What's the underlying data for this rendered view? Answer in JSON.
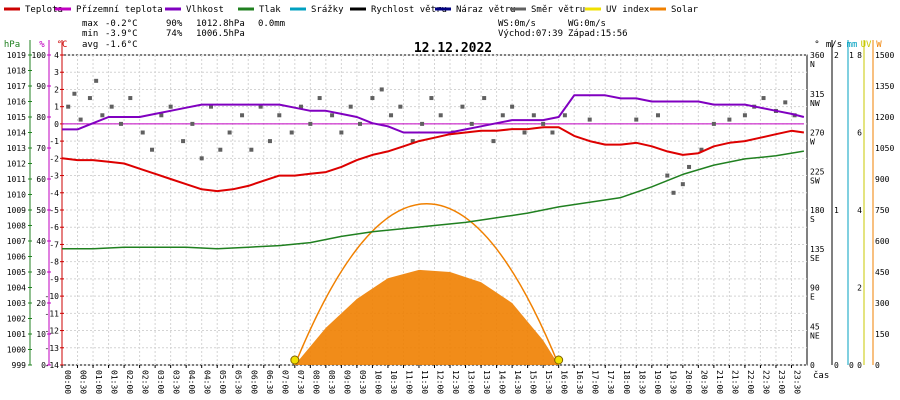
{
  "chart_data": {
    "type": "line",
    "title": "12.12.2022",
    "legend": [
      {
        "label": "Teplota",
        "color": "#cc0000"
      },
      {
        "label": "Přízemní teplota",
        "color": "#c000c0"
      },
      {
        "label": "Vlhkost",
        "color": "#8000c0"
      },
      {
        "label": "Tlak",
        "color": "#208020"
      },
      {
        "label": "Srážky",
        "color": "#00a0c0"
      },
      {
        "label": "Rychlost větru",
        "color": "#000000"
      },
      {
        "label": "Náraz větru",
        "color": "#000080"
      },
      {
        "label": "Směr větru",
        "color": "#606060"
      },
      {
        "label": "UV index",
        "color": "#f0e000"
      },
      {
        "label": "Solar",
        "color": "#f08000"
      }
    ],
    "stats": {
      "max": {
        "label": "max",
        "temp": "-0.2°C",
        "hum": "90%",
        "press": "1012.8hPa",
        "rain": "0.0mm"
      },
      "min": {
        "label": "min",
        "temp": "-3.9°C",
        "hum": "74%",
        "press": "1006.5hPa"
      },
      "avg": {
        "label": "avg",
        "temp": "-1.6°C"
      }
    },
    "wind": {
      "ws": "WS:0m/s",
      "wg": "WG:0m/s",
      "sunrise": "Východ:07:39",
      "sunset": "Západ:15:56"
    },
    "axes": {
      "hpa": {
        "unit": "hPa",
        "color": "#208020",
        "ticks": [
          "999",
          "1000",
          "1001",
          "1002",
          "1003",
          "1004",
          "1005",
          "1006",
          "1007",
          "1008",
          "1009",
          "1010",
          "1011",
          "1012",
          "1013",
          "1014",
          "1015",
          "1016",
          "1017",
          "1018",
          "1019"
        ]
      },
      "pct": {
        "unit": "%",
        "color": "#c000c0",
        "ticks": [
          "0",
          "10",
          "20",
          "30",
          "40",
          "50",
          "60",
          "70",
          "80",
          "90",
          "100"
        ]
      },
      "degc": {
        "unit": "°C",
        "color": "#cc0000",
        "ticks": [
          "-14",
          "-13",
          "-12",
          "-11",
          "-10",
          "-9",
          "-8",
          "-7",
          "-6",
          "-5",
          "-4",
          "-3",
          "-2",
          "-1",
          "0",
          "1",
          "2",
          "3",
          "4"
        ]
      },
      "dir": {
        "unit": "°",
        "color": "#000000",
        "ticks": [
          "0",
          "45\nNE",
          "90\nE",
          "135\nSE",
          "180\nS",
          "225\nSW",
          "270\nW",
          "315\nNW",
          "360\nN"
        ]
      },
      "ms": {
        "unit": "m/s",
        "color": "#000000",
        "ticks": [
          "0",
          "1",
          "2"
        ]
      },
      "mm": {
        "unit": "mm",
        "color": "#00a0c0",
        "ticks": [
          "0",
          "1"
        ]
      },
      "uv": {
        "unit": "UV",
        "color": "#c8c800",
        "ticks": [
          "0",
          "2",
          "4",
          "6",
          "8"
        ]
      },
      "w": {
        "unit": "W",
        "color": "#f08000",
        "ticks": [
          "0",
          "150",
          "300",
          "450",
          "600",
          "750",
          "900",
          "1050",
          "1200",
          "1350",
          "1500"
        ]
      }
    },
    "x_ticks": [
      "00:00",
      "00:30",
      "01:00",
      "01:30",
      "02:00",
      "02:30",
      "03:00",
      "03:30",
      "04:00",
      "04:30",
      "05:00",
      "05:30",
      "06:00",
      "06:30",
      "07:00",
      "07:30",
      "08:00",
      "08:30",
      "09:00",
      "09:30",
      "10:00",
      "10:30",
      "11:00",
      "11:30",
      "12:00",
      "12:30",
      "13:00",
      "13:30",
      "14:00",
      "14:30",
      "15:00",
      "15:30",
      "16:00",
      "16:30",
      "17:00",
      "17:30",
      "18:00",
      "18:30",
      "19:00",
      "19:30",
      "20:00",
      "20:30",
      "21:00",
      "21:30",
      "22:00",
      "22:30",
      "23:00",
      "23:30"
    ],
    "xlabel": "čas",
    "series": {
      "teplota": {
        "x": [
          0,
          0.5,
          1,
          1.5,
          2,
          2.5,
          3,
          3.5,
          4,
          4.5,
          5,
          5.5,
          6,
          6.5,
          7,
          7.5,
          8,
          8.5,
          9,
          9.5,
          10,
          10.5,
          11,
          11.5,
          12,
          12.5,
          13,
          13.5,
          14,
          14.5,
          15,
          15.5,
          16,
          16.5,
          17,
          17.5,
          18,
          18.5,
          19,
          19.5,
          20,
          20.5,
          21,
          21.5,
          22,
          22.5,
          23,
          23.5,
          23.9
        ],
        "y": [
          -2.0,
          -2.1,
          -2.1,
          -2.2,
          -2.3,
          -2.6,
          -2.9,
          -3.2,
          -3.5,
          -3.8,
          -3.9,
          -3.8,
          -3.6,
          -3.3,
          -3.0,
          -3.0,
          -2.9,
          -2.8,
          -2.5,
          -2.1,
          -1.8,
          -1.6,
          -1.3,
          -1.0,
          -0.8,
          -0.6,
          -0.5,
          -0.4,
          -0.4,
          -0.3,
          -0.3,
          -0.2,
          -0.2,
          -0.7,
          -1.0,
          -1.2,
          -1.2,
          -1.1,
          -1.3,
          -1.6,
          -1.8,
          -1.7,
          -1.3,
          -1.1,
          -1.0,
          -0.8,
          -0.6,
          -0.4,
          -0.5
        ]
      },
      "vlhkost": {
        "x": [
          0,
          0.5,
          1,
          1.5,
          2,
          2.5,
          3,
          3.5,
          4,
          4.5,
          5,
          5.5,
          6,
          6.5,
          7,
          7.5,
          8,
          8.5,
          9,
          9.5,
          10,
          10.5,
          11,
          11.5,
          12,
          12.5,
          13,
          13.5,
          14,
          14.5,
          15,
          15.5,
          16,
          16.5,
          17,
          17.5,
          18,
          18.5,
          19,
          19.5,
          20,
          20.5,
          21,
          21.5,
          22,
          22.5,
          23,
          23.5,
          23.9
        ],
        "y": [
          76,
          76,
          78,
          80,
          80,
          80,
          81,
          82,
          83,
          84,
          84,
          84,
          84,
          84,
          84,
          83,
          82,
          82,
          81,
          80,
          78,
          77,
          75,
          75,
          75,
          75,
          76,
          77,
          78,
          79,
          79,
          79,
          80,
          87,
          87,
          87,
          86,
          86,
          85,
          85,
          85,
          85,
          84,
          84,
          84,
          83,
          82,
          81,
          80
        ]
      },
      "tlak": {
        "x": [
          0,
          1,
          2,
          3,
          4,
          5,
          6,
          7,
          8,
          9,
          10,
          11,
          12,
          13,
          14,
          15,
          16,
          17,
          18,
          19,
          20,
          21,
          22,
          23,
          23.9
        ],
        "y": [
          1006.5,
          1006.5,
          1006.6,
          1006.6,
          1006.6,
          1006.5,
          1006.6,
          1006.7,
          1006.9,
          1007.3,
          1007.6,
          1007.8,
          1008.0,
          1008.2,
          1008.5,
          1008.8,
          1009.2,
          1009.5,
          1009.8,
          1010.5,
          1011.3,
          1011.9,
          1012.3,
          1012.5,
          1012.8
        ]
      },
      "prizemni": {
        "x": [
          0,
          23.9
        ],
        "y": [
          0,
          0
        ]
      },
      "smer_vetru": {
        "x": [
          0.2,
          0.4,
          0.6,
          0.9,
          1.1,
          1.3,
          1.6,
          1.9,
          2.2,
          2.6,
          2.9,
          3.2,
          3.5,
          3.9,
          4.2,
          4.5,
          4.8,
          5.1,
          5.4,
          5.8,
          6.1,
          6.4,
          6.7,
          7.0,
          7.4,
          7.7,
          8.0,
          8.3,
          8.7,
          9.0,
          9.3,
          9.6,
          10.0,
          10.3,
          10.6,
          10.9,
          11.3,
          11.6,
          11.9,
          12.2,
          12.6,
          12.9,
          13.2,
          13.6,
          13.9,
          14.2,
          14.5,
          14.9,
          15.2,
          15.5,
          15.8,
          16.2,
          17.0,
          18.5,
          19.2,
          19.5,
          19.7,
          20.0,
          20.2,
          20.6,
          21.0,
          21.5,
          22.0,
          22.3,
          22.6,
          23.0,
          23.3,
          23.6
        ],
        "y": [
          300,
          315,
          285,
          310,
          330,
          290,
          300,
          280,
          310,
          270,
          250,
          290,
          300,
          260,
          280,
          240,
          300,
          250,
          270,
          290,
          250,
          300,
          260,
          290,
          270,
          300,
          280,
          310,
          290,
          270,
          300,
          280,
          310,
          320,
          290,
          300,
          260,
          280,
          310,
          290,
          270,
          300,
          280,
          310,
          260,
          290,
          300,
          270,
          290,
          280,
          270,
          290,
          285,
          285,
          290,
          220,
          200,
          210,
          230,
          250,
          280,
          285,
          290,
          300,
          310,
          295,
          305,
          290
        ]
      },
      "solar": {
        "x": [
          7.5,
          8.5,
          9.5,
          10.5,
          11.5,
          12.5,
          13.5,
          14.5,
          15.5,
          16.0
        ],
        "y": [
          0,
          180,
          320,
          420,
          460,
          450,
          400,
          300,
          120,
          0
        ]
      }
    }
  }
}
